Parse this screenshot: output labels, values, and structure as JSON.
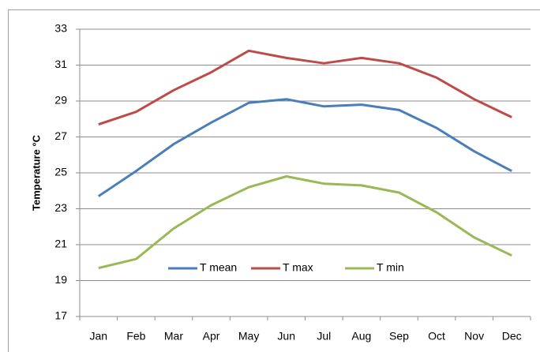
{
  "chart_data": {
    "type": "line",
    "ylabel": "Temperature °C",
    "categories": [
      "Jan",
      "Feb",
      "Mar",
      "Apr",
      "May",
      "Jun",
      "Jul",
      "Aug",
      "Sep",
      "Oct",
      "Nov",
      "Dec"
    ],
    "series": [
      {
        "name": "T mean",
        "color": "#4a7ebb",
        "values": [
          23.7,
          25.1,
          26.6,
          27.8,
          28.9,
          29.1,
          28.7,
          28.8,
          28.5,
          27.5,
          26.2,
          25.1
        ]
      },
      {
        "name": "T max",
        "color": "#be4b48",
        "values": [
          27.7,
          28.4,
          29.6,
          30.6,
          31.8,
          31.4,
          31.1,
          31.4,
          31.1,
          30.3,
          29.1,
          28.1
        ]
      },
      {
        "name": "T min",
        "color": "#98b954",
        "values": [
          19.7,
          20.2,
          21.9,
          23.2,
          24.2,
          24.8,
          24.4,
          24.3,
          23.9,
          22.8,
          21.4,
          20.4
        ]
      }
    ],
    "ylim": [
      17,
      33
    ],
    "yticks": [
      17,
      19,
      21,
      23,
      25,
      27,
      29,
      31,
      33
    ],
    "grid": true,
    "legend": "bottom"
  }
}
